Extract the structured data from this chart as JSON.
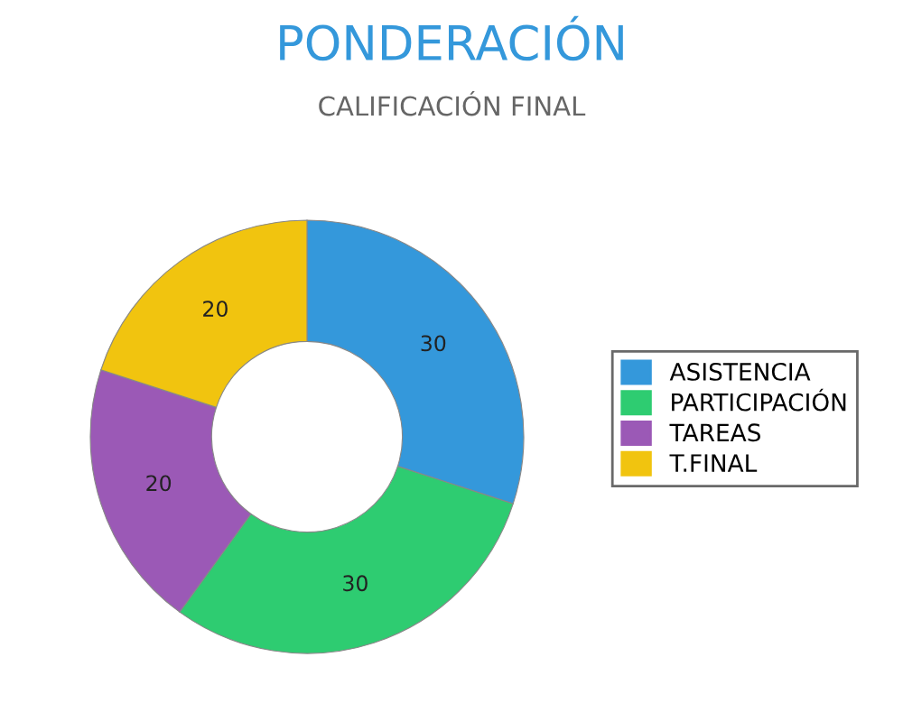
{
  "chart_data": {
    "type": "donut",
    "title": "PONDERACIÓN",
    "subtitle": "CALIFICACIÓN FINAL",
    "categories": [
      "ASISTENCIA",
      "PARTICIPACIÓN",
      "TAREAS",
      "T.FINAL"
    ],
    "values": [
      30,
      30,
      20,
      20
    ],
    "colors": [
      "#3498db",
      "#2ecc71",
      "#9b59b6",
      "#f1c40f"
    ],
    "data_labels": true,
    "legend": "right"
  }
}
